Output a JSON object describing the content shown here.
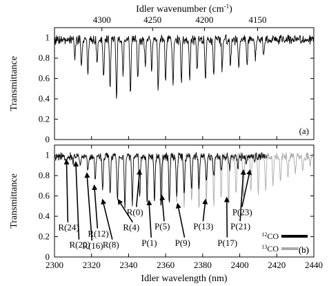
{
  "chart_data": [
    {
      "panel": "a",
      "type": "line",
      "panel_label": "(a)",
      "ylabel": "Transmittance",
      "x2label": "Idler wavenumber",
      "x2label_unit": "(cm",
      "x2label_exp": "-1",
      "x2label_close": ")",
      "xlim_wavelength_nm": [
        2300,
        2440
      ],
      "ylim": [
        0,
        1.1
      ],
      "y_ticks": [
        "0",
        "0.2",
        "0.4",
        "0.6",
        "0.8",
        "1"
      ],
      "y_tick_values": [
        0,
        0.2,
        0.4,
        0.6,
        0.8,
        1.0
      ],
      "x2_ticks": [
        "4300",
        "4250",
        "4200",
        "4150"
      ],
      "x2_tick_values": [
        4300,
        4250,
        4200,
        4150
      ],
      "baseline": 1.0,
      "dips": [
        {
          "x": 2311.0,
          "y": 0.82
        },
        {
          "x": 2314.5,
          "y": 0.72
        },
        {
          "x": 2318.0,
          "y": 0.63
        },
        {
          "x": 2323.0,
          "y": 0.77
        },
        {
          "x": 2326.5,
          "y": 0.58
        },
        {
          "x": 2330.0,
          "y": 0.54
        },
        {
          "x": 2333.5,
          "y": 0.42
        },
        {
          "x": 2337.0,
          "y": 0.64
        },
        {
          "x": 2341.0,
          "y": 0.46
        },
        {
          "x": 2345.0,
          "y": 0.58
        },
        {
          "x": 2349.0,
          "y": 0.72
        },
        {
          "x": 2352.5,
          "y": 0.67
        },
        {
          "x": 2356.0,
          "y": 0.52
        },
        {
          "x": 2360.0,
          "y": 0.6
        },
        {
          "x": 2364.0,
          "y": 0.53
        },
        {
          "x": 2368.5,
          "y": 0.56
        },
        {
          "x": 2373.0,
          "y": 0.62
        },
        {
          "x": 2377.0,
          "y": 0.68
        },
        {
          "x": 2381.5,
          "y": 0.58
        },
        {
          "x": 2386.0,
          "y": 0.64
        },
        {
          "x": 2390.5,
          "y": 0.69
        },
        {
          "x": 2395.0,
          "y": 0.74
        },
        {
          "x": 2399.5,
          "y": 0.73
        },
        {
          "x": 2404.0,
          "y": 0.78
        },
        {
          "x": 2408.5,
          "y": 0.82
        },
        {
          "x": 2413.0,
          "y": 0.86
        }
      ]
    },
    {
      "panel": "b",
      "type": "line",
      "panel_label": "(b)",
      "xlabel": "Idler wavelength",
      "xlabel_unit": "(nm)",
      "ylabel": "Transmittance",
      "xlim": [
        2300,
        2440
      ],
      "ylim": [
        0,
        1.1
      ],
      "x_ticks": [
        "2300",
        "2320",
        "2340",
        "2360",
        "2380",
        "2400",
        "2420",
        "2440"
      ],
      "x_tick_values": [
        2300,
        2320,
        2340,
        2360,
        2380,
        2400,
        2420,
        2440
      ],
      "y_ticks": [
        "0",
        "0.2",
        "0.4",
        "0.6",
        "0.8",
        "1"
      ],
      "y_tick_values": [
        0,
        0.2,
        0.4,
        0.6,
        0.8,
        1.0
      ],
      "legend_position": "bottom-right",
      "series": [
        {
          "name_sup": "12",
          "name": "CO",
          "color": "#000000",
          "x_range": [
            2300,
            2415
          ],
          "dips": [
            {
              "x": 2306.0,
              "y": 0.95
            },
            {
              "x": 2310.0,
              "y": 0.93
            },
            {
              "x": 2314.0,
              "y": 0.9
            },
            {
              "x": 2318.0,
              "y": 0.84
            },
            {
              "x": 2322.0,
              "y": 0.76
            },
            {
              "x": 2326.0,
              "y": 0.68
            },
            {
              "x": 2330.0,
              "y": 0.6
            },
            {
              "x": 2334.0,
              "y": 0.55
            },
            {
              "x": 2338.0,
              "y": 0.5
            },
            {
              "x": 2342.0,
              "y": 0.52
            },
            {
              "x": 2346.0,
              "y": 0.58
            },
            {
              "x": 2350.0,
              "y": 0.53
            },
            {
              "x": 2354.0,
              "y": 0.55
            },
            {
              "x": 2357.5,
              "y": 0.52
            },
            {
              "x": 2362.0,
              "y": 0.54
            },
            {
              "x": 2366.0,
              "y": 0.59
            },
            {
              "x": 2370.0,
              "y": 0.62
            },
            {
              "x": 2374.0,
              "y": 0.66
            },
            {
              "x": 2378.0,
              "y": 0.7
            },
            {
              "x": 2382.0,
              "y": 0.75
            },
            {
              "x": 2386.0,
              "y": 0.8
            },
            {
              "x": 2390.0,
              "y": 0.84
            },
            {
              "x": 2394.5,
              "y": 0.88
            },
            {
              "x": 2399.0,
              "y": 0.9
            },
            {
              "x": 2403.5,
              "y": 0.92
            },
            {
              "x": 2408.0,
              "y": 0.94
            }
          ]
        },
        {
          "name_sup": "13",
          "name": "CO",
          "color": "#aaaaaa",
          "x_range": [
            2346,
            2440
          ],
          "dips": [
            {
              "x": 2350.0,
              "y": 0.72
            },
            {
              "x": 2354.0,
              "y": 0.64
            },
            {
              "x": 2358.0,
              "y": 0.6
            },
            {
              "x": 2362.0,
              "y": 0.55
            },
            {
              "x": 2366.0,
              "y": 0.58
            },
            {
              "x": 2370.0,
              "y": 0.52
            },
            {
              "x": 2374.0,
              "y": 0.55
            },
            {
              "x": 2378.0,
              "y": 0.5
            },
            {
              "x": 2382.0,
              "y": 0.56
            },
            {
              "x": 2386.0,
              "y": 0.52
            },
            {
              "x": 2390.0,
              "y": 0.58
            },
            {
              "x": 2394.0,
              "y": 0.55
            },
            {
              "x": 2398.0,
              "y": 0.6
            },
            {
              "x": 2402.0,
              "y": 0.58
            },
            {
              "x": 2406.0,
              "y": 0.63
            },
            {
              "x": 2410.0,
              "y": 0.64
            },
            {
              "x": 2414.0,
              "y": 0.68
            },
            {
              "x": 2418.0,
              "y": 0.72
            },
            {
              "x": 2422.0,
              "y": 0.74
            },
            {
              "x": 2426.0,
              "y": 0.78
            },
            {
              "x": 2430.0,
              "y": 0.82
            },
            {
              "x": 2434.0,
              "y": 0.86
            },
            {
              "x": 2438.0,
              "y": 0.9
            }
          ]
        }
      ],
      "annotations": [
        {
          "label": "R(24)",
          "text_x": 2302,
          "text_y": 0.26,
          "tip_x": 2306.5,
          "tip_y": 0.95
        },
        {
          "label": "R(20)",
          "text_x": 2308,
          "text_y": 0.09,
          "tip_x": 2311.5,
          "tip_y": 0.93
        },
        {
          "label": "R(16)",
          "text_x": 2315,
          "text_y": 0.08,
          "tip_x": 2317.5,
          "tip_y": 0.82
        },
        {
          "label": "R(12)",
          "text_x": 2318,
          "text_y": 0.2,
          "tip_x": 2321.5,
          "tip_y": 0.7
        },
        {
          "label": "R(8)",
          "text_x": 2326,
          "text_y": 0.09,
          "tip_x": 2326.0,
          "tip_y": 0.56
        },
        {
          "label": "R(4)",
          "text_x": 2337,
          "text_y": 0.26,
          "tip_x": 2334.5,
          "tip_y": 0.56
        },
        {
          "label": "R(0)",
          "text_x": 2339,
          "text_y": 0.41,
          "tip_x": 2346.0,
          "tip_y": 0.85
        },
        {
          "label": "P(1)",
          "text_x": 2347,
          "text_y": 0.11,
          "tip_x": 2351.0,
          "tip_y": 0.55
        },
        {
          "label": "P(5)",
          "text_x": 2354,
          "text_y": 0.27,
          "tip_x": 2358.0,
          "tip_y": 0.6
        },
        {
          "label": "P(9)",
          "text_x": 2365,
          "text_y": 0.11,
          "tip_x": 2366.5,
          "tip_y": 0.52
        },
        {
          "label": "P(13)",
          "text_x": 2375,
          "text_y": 0.27,
          "tip_x": 2381.5,
          "tip_y": 0.56
        },
        {
          "label": "P(17)",
          "text_x": 2388,
          "text_y": 0.11,
          "tip_x": 2393.0,
          "tip_y": 0.58
        },
        {
          "label": "P(21)",
          "text_x": 2395,
          "text_y": 0.27,
          "tip_x": 2402.0,
          "tip_y": 0.85
        },
        {
          "label": "P(23)",
          "text_x": 2396,
          "text_y": 0.41,
          "tip_x": 2405.5,
          "tip_y": 0.85
        }
      ]
    }
  ]
}
